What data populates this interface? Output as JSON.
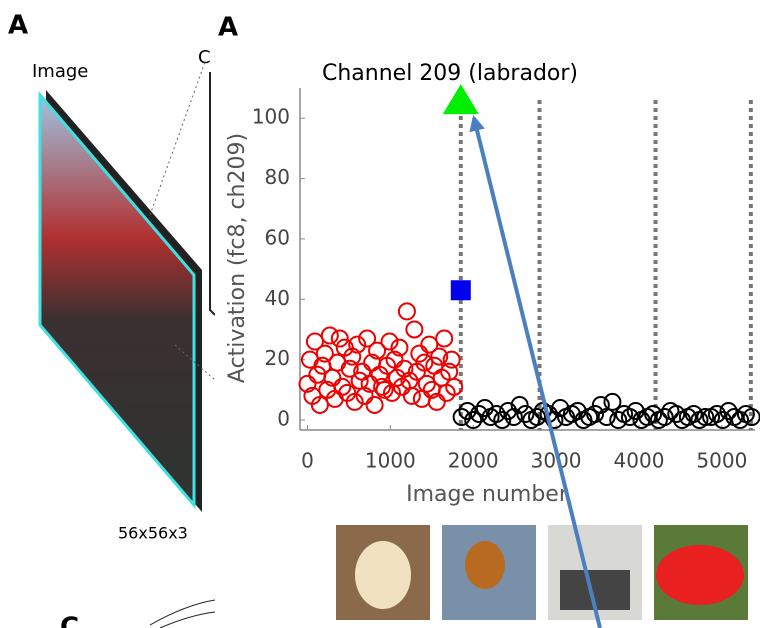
{
  "panel_labels": [
    "A",
    "A"
  ],
  "left_panel": {
    "label": "Image",
    "cut_label": "C",
    "size": "56x56x3",
    "bottom_label": "C"
  },
  "chart_data": {
    "type": "scatter",
    "title": "Channel 209 (labrador)",
    "xlabel": "Image number",
    "ylabel": "Activation (fc8, ch209)",
    "xlim": [
      -90,
      5400
    ],
    "ylim": [
      -3.3,
      110
    ],
    "xticks": [
      0,
      1000,
      2000,
      3000,
      4000,
      5000
    ],
    "yticks": [
      0,
      20,
      40,
      60,
      80,
      100
    ],
    "vlines": [
      1850,
      2800,
      4200,
      5350
    ],
    "series": [
      {
        "color": "#ee0000",
        "marker": "circle-open",
        "x": [
          0,
          30,
          60,
          90,
          120,
          150,
          180,
          210,
          240,
          270,
          300,
          330,
          360,
          390,
          420,
          450,
          480,
          510,
          540,
          570,
          600,
          630,
          660,
          690,
          720,
          750,
          780,
          810,
          840,
          870,
          900,
          930,
          960,
          990,
          1020,
          1050,
          1080,
          1110,
          1140,
          1170,
          1200,
          1230,
          1260,
          1290,
          1320,
          1350,
          1380,
          1410,
          1440,
          1470,
          1500,
          1530,
          1560,
          1590,
          1620,
          1650,
          1680,
          1710,
          1740,
          1770
        ],
        "values": [
          12,
          20,
          8,
          26,
          15,
          5,
          18,
          22,
          10,
          28,
          14,
          7,
          19,
          27,
          11,
          24,
          9,
          17,
          21,
          6,
          25,
          13,
          16,
          8,
          27,
          12,
          19,
          5,
          23,
          15,
          11,
          10,
          18,
          26,
          9,
          20,
          14,
          24,
          11,
          17,
          36,
          13,
          8,
          30,
          16,
          22,
          7,
          19,
          12,
          25,
          10,
          18,
          6,
          21,
          14,
          27,
          9,
          16,
          20,
          11
        ]
      },
      {
        "color": "#000000",
        "marker": "circle-open",
        "x": [
          1860,
          1930,
          2000,
          2070,
          2140,
          2210,
          2280,
          2350,
          2420,
          2490,
          2560,
          2630,
          2700,
          2770,
          2840,
          2910,
          2980,
          3050,
          3120,
          3190,
          3260,
          3330,
          3400,
          3470,
          3540,
          3610,
          3680,
          3750,
          3820,
          3890,
          3960,
          4030,
          4100,
          4170,
          4240,
          4310,
          4380,
          4450,
          4520,
          4590,
          4660,
          4730,
          4800,
          4870,
          4940,
          5010,
          5080,
          5150,
          5220,
          5290,
          5360
        ],
        "values": [
          1,
          3,
          0,
          2,
          4,
          1,
          2,
          0,
          3,
          1,
          5,
          2,
          0,
          1,
          3,
          2,
          0,
          4,
          1,
          2,
          3,
          0,
          1,
          2,
          5,
          1,
          6,
          0,
          2,
          1,
          3,
          0,
          1,
          2,
          0,
          1,
          3,
          2,
          0,
          1,
          2,
          0,
          1,
          1,
          2,
          0,
          3,
          1,
          0,
          2,
          1
        ]
      },
      {
        "color": "#00ee00",
        "marker": "triangle",
        "x": [
          1850
        ],
        "values": [
          106
        ]
      },
      {
        "color": "#0000ee",
        "marker": "square",
        "x": [
          1850
        ],
        "values": [
          43
        ]
      }
    ]
  }
}
